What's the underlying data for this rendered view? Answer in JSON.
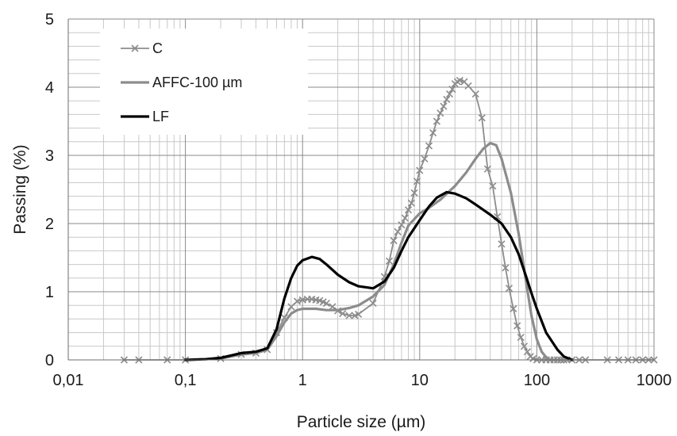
{
  "chart_data": {
    "type": "line",
    "title": "",
    "xlabel": "Particle size (µm)",
    "ylabel": "Passing (%)",
    "x_scale": "log",
    "xlim": [
      0.01,
      1000
    ],
    "ylim": [
      0,
      5
    ],
    "x_ticks": [
      0.01,
      0.1,
      1,
      10,
      100,
      1000
    ],
    "x_tick_labels": [
      "0,01",
      "0,1",
      "1",
      "10",
      "100",
      "1000"
    ],
    "y_ticks": [
      0,
      1,
      2,
      3,
      4,
      5
    ],
    "y_tick_labels": [
      "0",
      "1",
      "2",
      "3",
      "4",
      "5"
    ],
    "grid": true,
    "legend_position": "top-left",
    "series": [
      {
        "name": "C",
        "color": "#8c8c8c",
        "marker": "x",
        "points": [
          [
            0.03,
            0
          ],
          [
            0.04,
            0
          ],
          [
            0.07,
            0
          ],
          [
            0.1,
            0
          ],
          [
            0.2,
            0.02
          ],
          [
            0.3,
            0.08
          ],
          [
            0.4,
            0.1
          ],
          [
            0.5,
            0.15
          ],
          [
            0.6,
            0.4
          ],
          [
            0.7,
            0.62
          ],
          [
            0.8,
            0.78
          ],
          [
            0.9,
            0.86
          ],
          [
            1,
            0.88
          ],
          [
            1.1,
            0.89
          ],
          [
            1.2,
            0.89
          ],
          [
            1.3,
            0.88
          ],
          [
            1.4,
            0.87
          ],
          [
            1.5,
            0.85
          ],
          [
            1.6,
            0.83
          ],
          [
            1.8,
            0.78
          ],
          [
            2,
            0.72
          ],
          [
            2.2,
            0.68
          ],
          [
            2.5,
            0.65
          ],
          [
            2.8,
            0.65
          ],
          [
            3,
            0.67
          ],
          [
            4,
            0.83
          ],
          [
            5,
            1.22
          ],
          [
            5.5,
            1.45
          ],
          [
            6,
            1.75
          ],
          [
            6.5,
            1.88
          ],
          [
            7,
            1.98
          ],
          [
            7.5,
            2.08
          ],
          [
            8,
            2.2
          ],
          [
            8.5,
            2.3
          ],
          [
            9,
            2.45
          ],
          [
            9.5,
            2.62
          ],
          [
            10,
            2.78
          ],
          [
            11,
            2.95
          ],
          [
            12,
            3.14
          ],
          [
            13,
            3.33
          ],
          [
            14,
            3.5
          ],
          [
            15,
            3.62
          ],
          [
            16,
            3.72
          ],
          [
            17,
            3.82
          ],
          [
            18,
            3.9
          ],
          [
            19,
            3.97
          ],
          [
            20,
            4.05
          ],
          [
            21,
            4.08
          ],
          [
            22,
            4.1
          ],
          [
            24,
            4.08
          ],
          [
            26,
            4.02
          ],
          [
            30,
            3.9
          ],
          [
            34,
            3.55
          ],
          [
            38,
            2.8
          ],
          [
            42,
            2.55
          ],
          [
            46,
            2.1
          ],
          [
            50,
            1.7
          ],
          [
            54,
            1.35
          ],
          [
            58,
            1.05
          ],
          [
            63,
            0.75
          ],
          [
            68,
            0.5
          ],
          [
            73,
            0.33
          ],
          [
            78,
            0.2
          ],
          [
            83,
            0.12
          ],
          [
            88,
            0.05
          ],
          [
            93,
            0.02
          ],
          [
            100,
            0
          ],
          [
            110,
            0
          ],
          [
            120,
            0
          ],
          [
            130,
            0
          ],
          [
            140,
            0
          ],
          [
            150,
            0
          ],
          [
            160,
            0
          ],
          [
            170,
            0
          ],
          [
            180,
            0
          ],
          [
            200,
            0
          ],
          [
            230,
            0
          ],
          [
            260,
            0
          ],
          [
            400,
            0
          ],
          [
            500,
            0
          ],
          [
            600,
            0
          ],
          [
            700,
            0
          ],
          [
            800,
            0
          ],
          [
            900,
            0
          ],
          [
            1000,
            0
          ]
        ]
      },
      {
        "name": "AFFC-100 µm",
        "color": "#8c8c8c",
        "marker": "none",
        "points": [
          [
            0.2,
            0.02
          ],
          [
            0.3,
            0.08
          ],
          [
            0.4,
            0.1
          ],
          [
            0.5,
            0.15
          ],
          [
            0.6,
            0.35
          ],
          [
            0.7,
            0.55
          ],
          [
            0.8,
            0.68
          ],
          [
            0.9,
            0.73
          ],
          [
            1,
            0.75
          ],
          [
            1.3,
            0.75
          ],
          [
            1.6,
            0.73
          ],
          [
            2,
            0.73
          ],
          [
            2.5,
            0.76
          ],
          [
            3,
            0.8
          ],
          [
            4,
            0.93
          ],
          [
            5,
            1.1
          ],
          [
            6,
            1.4
          ],
          [
            7,
            1.72
          ],
          [
            8,
            1.97
          ],
          [
            10,
            2.15
          ],
          [
            12,
            2.23
          ],
          [
            15,
            2.35
          ],
          [
            20,
            2.55
          ],
          [
            25,
            2.75
          ],
          [
            30,
            2.95
          ],
          [
            35,
            3.1
          ],
          [
            40,
            3.18
          ],
          [
            45,
            3.15
          ],
          [
            50,
            2.95
          ],
          [
            60,
            2.45
          ],
          [
            70,
            1.85
          ],
          [
            80,
            1.2
          ],
          [
            90,
            0.65
          ],
          [
            100,
            0.3
          ],
          [
            110,
            0.12
          ],
          [
            120,
            0.04
          ],
          [
            130,
            0
          ],
          [
            200,
            0
          ]
        ]
      },
      {
        "name": "LF",
        "color": "#000000",
        "marker": "none",
        "points": [
          [
            0.1,
            0
          ],
          [
            0.15,
            0.01
          ],
          [
            0.2,
            0.03
          ],
          [
            0.3,
            0.1
          ],
          [
            0.4,
            0.12
          ],
          [
            0.5,
            0.17
          ],
          [
            0.6,
            0.45
          ],
          [
            0.7,
            0.9
          ],
          [
            0.8,
            1.2
          ],
          [
            0.9,
            1.38
          ],
          [
            1,
            1.46
          ],
          [
            1.2,
            1.51
          ],
          [
            1.4,
            1.48
          ],
          [
            1.6,
            1.4
          ],
          [
            2,
            1.25
          ],
          [
            2.5,
            1.14
          ],
          [
            3,
            1.08
          ],
          [
            4,
            1.05
          ],
          [
            5,
            1.15
          ],
          [
            6,
            1.35
          ],
          [
            7,
            1.6
          ],
          [
            8,
            1.8
          ],
          [
            10,
            2.05
          ],
          [
            12,
            2.25
          ],
          [
            14,
            2.38
          ],
          [
            17,
            2.46
          ],
          [
            20,
            2.44
          ],
          [
            25,
            2.37
          ],
          [
            30,
            2.28
          ],
          [
            35,
            2.2
          ],
          [
            40,
            2.13
          ],
          [
            50,
            2.0
          ],
          [
            60,
            1.8
          ],
          [
            70,
            1.55
          ],
          [
            80,
            1.25
          ],
          [
            90,
            0.98
          ],
          [
            100,
            0.75
          ],
          [
            120,
            0.4
          ],
          [
            150,
            0.15
          ],
          [
            170,
            0.05
          ],
          [
            200,
            0
          ]
        ]
      }
    ]
  }
}
